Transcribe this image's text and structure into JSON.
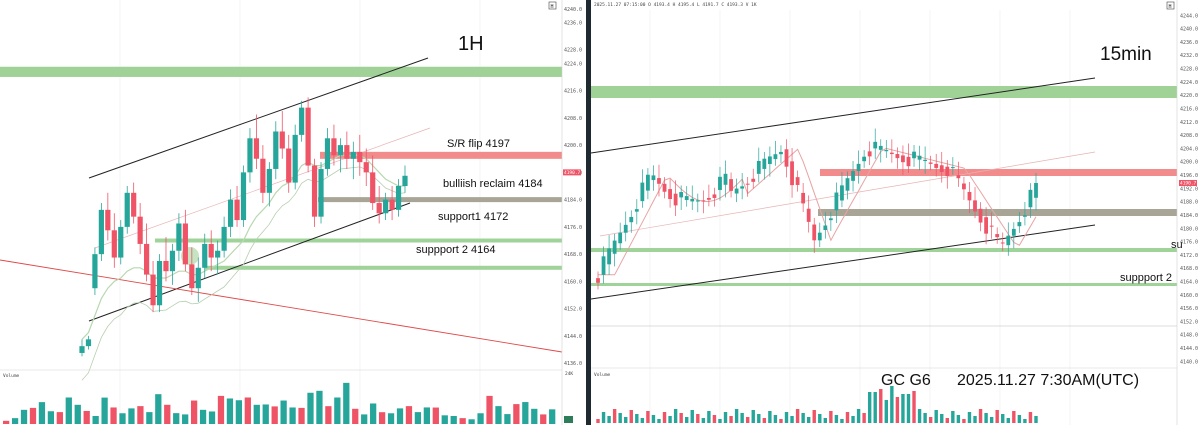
{
  "colors": {
    "up": "#26a69a",
    "down": "#ef5366",
    "resistance_band": "#f28b8b",
    "reclaim_band": "#a8a597",
    "support_band": "#9fd39a",
    "zone_band": "#8fca85",
    "ma_line": "#e8a3a3",
    "ma_fast": "#b8d8b0",
    "trend_line": "#222222",
    "red_trend": "#e04848"
  },
  "footer": {
    "symbol": "GC G6",
    "datetime": "2025.11.27 7:30AM(UTC)"
  },
  "chart_data": [
    {
      "type": "candlestick",
      "title": "1H",
      "ylim": [
        4134,
        4242
      ],
      "y_ticks": [
        "4240.0",
        "4236.0",
        "4228.0",
        "4224.0",
        "4216.0",
        "4208.0",
        "4200.0",
        "4192.0",
        "4184.0",
        "4176.0",
        "4168.0",
        "4160.0",
        "4152.0",
        "4144.0",
        "4136.0"
      ],
      "last_price_label": "4190.7",
      "volume_label": "Volume",
      "volume_scale_label": "24K",
      "levels": [
        {
          "label": "S/R flip 4197",
          "price": 4197,
          "kind": "resistance"
        },
        {
          "label": "bulliish reclaim 4184",
          "price": 4184,
          "kind": "reclaim"
        },
        {
          "label": "support1  4172",
          "price": 4172,
          "kind": "support"
        },
        {
          "label": "suppport 2   4164",
          "price": 4164,
          "kind": "support"
        }
      ],
      "zone": {
        "from": 4220,
        "to": 4223
      },
      "candles": [
        [
          4139,
          4143,
          4138,
          4141
        ],
        [
          4141,
          4144,
          4140,
          4143
        ],
        [
          4158,
          4170,
          4156,
          4168
        ],
        [
          4168,
          4183,
          4166,
          4181
        ],
        [
          4181,
          4186,
          4172,
          4175
        ],
        [
          4175,
          4180,
          4164,
          4167
        ],
        [
          4167,
          4178,
          4165,
          4176
        ],
        [
          4176,
          4188,
          4174,
          4186
        ],
        [
          4186,
          4189,
          4177,
          4179
        ],
        [
          4179,
          4183,
          4168,
          4171
        ],
        [
          4171,
          4177,
          4160,
          4162
        ],
        [
          4162,
          4166,
          4151,
          4153
        ],
        [
          4153,
          4168,
          4151,
          4166
        ],
        [
          4166,
          4173,
          4160,
          4163
        ],
        [
          4163,
          4171,
          4159,
          4169
        ],
        [
          4169,
          4180,
          4166,
          4177
        ],
        [
          4177,
          4181,
          4163,
          4165
        ],
        [
          4165,
          4170,
          4156,
          4158
        ],
        [
          4158,
          4167,
          4154,
          4164
        ],
        [
          4164,
          4174,
          4161,
          4171
        ],
        [
          4171,
          4175,
          4163,
          4167
        ],
        [
          4167,
          4172,
          4162,
          4169
        ],
        [
          4169,
          4179,
          4167,
          4176
        ],
        [
          4176,
          4187,
          4173,
          4184
        ],
        [
          4184,
          4188,
          4176,
          4178
        ],
        [
          4178,
          4194,
          4176,
          4192
        ],
        [
          4192,
          4205,
          4189,
          4202
        ],
        [
          4202,
          4209,
          4193,
          4196
        ],
        [
          4196,
          4200,
          4183,
          4186
        ],
        [
          4186,
          4195,
          4182,
          4193
        ],
        [
          4193,
          4207,
          4190,
          4204
        ],
        [
          4204,
          4210,
          4196,
          4199
        ],
        [
          4199,
          4203,
          4186,
          4189
        ],
        [
          4189,
          4206,
          4187,
          4203
        ],
        [
          4203,
          4213,
          4201,
          4211
        ],
        [
          4211,
          4214,
          4192,
          4194
        ],
        [
          4194,
          4196,
          4176,
          4179
        ],
        [
          4179,
          4195,
          4177,
          4193
        ],
        [
          4193,
          4205,
          4191,
          4202
        ],
        [
          4202,
          4206,
          4194,
          4197
        ],
        [
          4197,
          4202,
          4192,
          4200
        ],
        [
          4200,
          4204,
          4193,
          4196
        ],
        [
          4196,
          4201,
          4190,
          4198
        ],
        [
          4198,
          4203,
          4191,
          4195
        ],
        [
          4195,
          4199,
          4188,
          4192
        ],
        [
          4192,
          4197,
          4181,
          4183
        ],
        [
          4183,
          4188,
          4177,
          4180
        ],
        [
          4180,
          4186,
          4178,
          4184
        ],
        [
          4184,
          4188,
          4178,
          4181
        ],
        [
          4181,
          4190,
          4179,
          4188
        ],
        [
          4188,
          4194,
          4186,
          4191
        ]
      ],
      "volumes": [
        2,
        2,
        6,
        9,
        7,
        5,
        6,
        8,
        7,
        6,
        5,
        9,
        7,
        6,
        5,
        7,
        6,
        9,
        7,
        5,
        6,
        8,
        6,
        7,
        9,
        10,
        12,
        8,
        7,
        9,
        11,
        8,
        7,
        9,
        10,
        13,
        9,
        8,
        15,
        7,
        6,
        7,
        5,
        6,
        5,
        7,
        6,
        5,
        6,
        4,
        5
      ],
      "ma": [
        4143,
        4145,
        4150,
        4155,
        4158,
        4160,
        4161,
        4163,
        4164,
        4164,
        4163,
        4161,
        4161,
        4161,
        4162,
        4163,
        4163,
        4162,
        4162,
        4163,
        4164,
        4165,
        4166,
        4168,
        4170,
        4172,
        4176,
        4179,
        4181,
        4183,
        4186,
        4188,
        4189,
        4191,
        4194,
        4195,
        4194,
        4194,
        4195,
        4196,
        4197,
        4197,
        4197,
        4197,
        4196,
        4194,
        4192,
        4190,
        4189,
        4188,
        4188
      ]
    },
    {
      "type": "candlestick",
      "title": "15min",
      "ylim": [
        4138,
        4248
      ],
      "y_ticks": [
        "4244.0",
        "4240.0",
        "4236.0",
        "4232.0",
        "4228.0",
        "4224.0",
        "4220.0",
        "4216.0",
        "4212.0",
        "4208.0",
        "4204.0",
        "4200.0",
        "4196.0",
        "4192.0",
        "4188.0",
        "4184.0",
        "4180.0",
        "4176.0",
        "4172.0",
        "4168.0",
        "4164.0",
        "4160.0",
        "4156.0",
        "4152.0",
        "4148.0",
        "4144.0",
        "4140.0"
      ],
      "last_price_label": "4190.7",
      "header_text": "2025.11.27 07:15:00 O 4193.4 H 4195.4 L 4191.7 C 4193.3 V 1K",
      "volume_label": "Volume",
      "side_labels": [
        "su",
        "suppport 2"
      ],
      "zone": {
        "from": 4220,
        "to": 4223
      },
      "candles_count": 80
    }
  ]
}
